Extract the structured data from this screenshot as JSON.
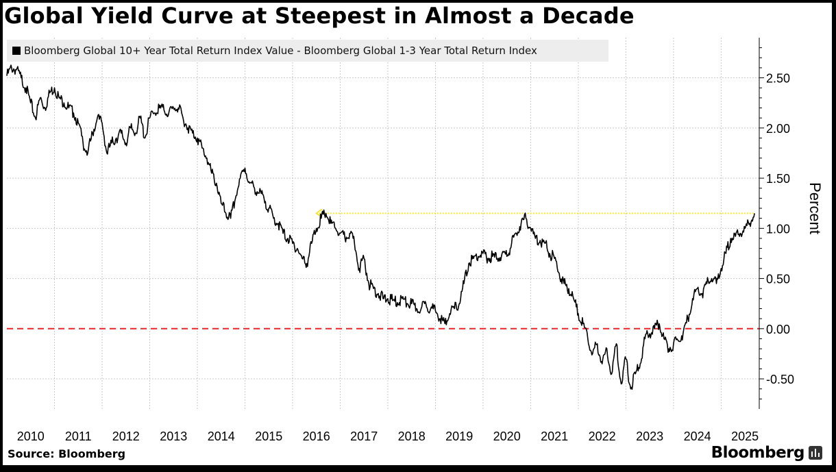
{
  "chart_data": {
    "type": "line",
    "title": "Global Yield Curve at Steepest in Almost a Decade",
    "legend": [
      "Bloomberg Global 10+ Year Total Return Index Value - Bloomberg Global 1-3 Year Total Return Index"
    ],
    "ylabel": "Percent",
    "xlabel": "",
    "ylim": [
      -0.8,
      2.9
    ],
    "xlim": [
      2010.0,
      2025.8
    ],
    "y_ticks": [
      2.5,
      2.0,
      1.5,
      1.0,
      0.5,
      0.0,
      -0.5
    ],
    "y_tick_labels": [
      "2.50",
      "2.00",
      "1.50",
      "1.00",
      "0.50",
      "0.00",
      "-0.50"
    ],
    "x_tick_labels": [
      "2010",
      "2011",
      "2012",
      "2013",
      "2014",
      "2015",
      "2016",
      "2017",
      "2018",
      "2019",
      "2020",
      "2021",
      "2022",
      "2023",
      "2024",
      "2025"
    ],
    "grid": true,
    "reference_lines": [
      {
        "name": "zero line",
        "y": 0.0,
        "style": "dashed",
        "color": "#e8262a"
      },
      {
        "name": "current level arrow",
        "y": 1.15,
        "x_start": 2016.5,
        "x_end": 2025.7,
        "style": "dotted-arrow",
        "color": "#f2e82b"
      }
    ],
    "series": [
      {
        "name": "Bloomberg Global 10+ Year Total Return Index Value - Bloomberg Global 1-3 Year Total Return Index",
        "color": "#000000",
        "x": [
          2010.0,
          2010.1,
          2010.2,
          2010.3,
          2010.4,
          2010.5,
          2010.6,
          2010.7,
          2010.8,
          2010.9,
          2011.0,
          2011.1,
          2011.2,
          2011.3,
          2011.4,
          2011.5,
          2011.6,
          2011.7,
          2011.8,
          2011.9,
          2012.0,
          2012.1,
          2012.2,
          2012.3,
          2012.4,
          2012.5,
          2012.6,
          2012.7,
          2012.8,
          2012.9,
          2013.0,
          2013.1,
          2013.2,
          2013.3,
          2013.4,
          2013.5,
          2013.6,
          2013.7,
          2013.8,
          2013.9,
          2014.0,
          2014.1,
          2014.2,
          2014.3,
          2014.4,
          2014.5,
          2014.6,
          2014.7,
          2014.8,
          2014.9,
          2015.0,
          2015.1,
          2015.2,
          2015.3,
          2015.4,
          2015.5,
          2015.6,
          2015.7,
          2015.8,
          2015.9,
          2016.0,
          2016.1,
          2016.2,
          2016.3,
          2016.4,
          2016.5,
          2016.6,
          2016.7,
          2016.8,
          2016.9,
          2017.0,
          2017.1,
          2017.2,
          2017.3,
          2017.4,
          2017.5,
          2017.6,
          2017.7,
          2017.8,
          2017.9,
          2018.0,
          2018.1,
          2018.2,
          2018.3,
          2018.4,
          2018.5,
          2018.6,
          2018.7,
          2018.8,
          2018.9,
          2019.0,
          2019.1,
          2019.2,
          2019.3,
          2019.4,
          2019.5,
          2019.6,
          2019.7,
          2019.8,
          2019.9,
          2020.0,
          2020.1,
          2020.2,
          2020.3,
          2020.4,
          2020.5,
          2020.6,
          2020.7,
          2020.8,
          2020.9,
          2021.0,
          2021.1,
          2021.2,
          2021.3,
          2021.4,
          2021.5,
          2021.6,
          2021.7,
          2021.8,
          2021.9,
          2022.0,
          2022.1,
          2022.2,
          2022.3,
          2022.4,
          2022.5,
          2022.6,
          2022.7,
          2022.8,
          2022.9,
          2023.0,
          2023.1,
          2023.2,
          2023.3,
          2023.4,
          2023.5,
          2023.6,
          2023.7,
          2023.8,
          2023.9,
          2024.0,
          2024.1,
          2024.2,
          2024.3,
          2024.4,
          2024.5,
          2024.6,
          2024.7,
          2024.8,
          2024.9,
          2025.0,
          2025.1,
          2025.2,
          2025.3,
          2025.4,
          2025.5,
          2025.6,
          2025.7
        ],
        "values": [
          2.52,
          2.6,
          2.58,
          2.5,
          2.4,
          2.25,
          2.1,
          2.3,
          2.2,
          2.35,
          2.4,
          2.3,
          2.25,
          2.2,
          2.15,
          2.05,
          1.85,
          1.75,
          1.95,
          2.1,
          2.05,
          1.75,
          1.85,
          1.9,
          1.95,
          1.85,
          2.0,
          1.95,
          2.1,
          1.9,
          2.1,
          2.15,
          2.2,
          2.18,
          2.15,
          2.2,
          2.2,
          2.1,
          2.0,
          1.95,
          1.9,
          1.8,
          1.7,
          1.55,
          1.45,
          1.25,
          1.15,
          1.1,
          1.3,
          1.5,
          1.6,
          1.45,
          1.4,
          1.35,
          1.3,
          1.2,
          1.1,
          1.05,
          0.95,
          0.9,
          0.85,
          0.8,
          0.7,
          0.65,
          0.85,
          1.0,
          1.1,
          1.15,
          1.05,
          1.0,
          0.95,
          0.9,
          0.95,
          0.85,
          0.6,
          0.7,
          0.45,
          0.4,
          0.35,
          0.3,
          0.3,
          0.28,
          0.26,
          0.3,
          0.25,
          0.25,
          0.2,
          0.2,
          0.25,
          0.2,
          0.18,
          0.1,
          0.05,
          0.15,
          0.2,
          0.25,
          0.45,
          0.65,
          0.7,
          0.72,
          0.75,
          0.7,
          0.72,
          0.7,
          0.75,
          0.72,
          0.85,
          0.95,
          1.05,
          1.1,
          1.0,
          0.9,
          0.88,
          0.85,
          0.75,
          0.7,
          0.55,
          0.45,
          0.4,
          0.3,
          0.15,
          0.05,
          -0.1,
          -0.25,
          -0.15,
          -0.35,
          -0.2,
          -0.45,
          -0.15,
          -0.55,
          -0.3,
          -0.6,
          -0.45,
          -0.35,
          -0.1,
          -0.05,
          0.0,
          0.05,
          -0.1,
          -0.2,
          -0.15,
          -0.12,
          -0.05,
          0.1,
          0.3,
          0.4,
          0.35,
          0.45,
          0.5,
          0.45,
          0.6,
          0.75,
          0.9,
          0.92,
          0.95,
          1.0,
          1.05,
          1.15
        ]
      }
    ]
  },
  "footer": {
    "source": "Source: Bloomberg",
    "brand": "Bloomberg"
  }
}
